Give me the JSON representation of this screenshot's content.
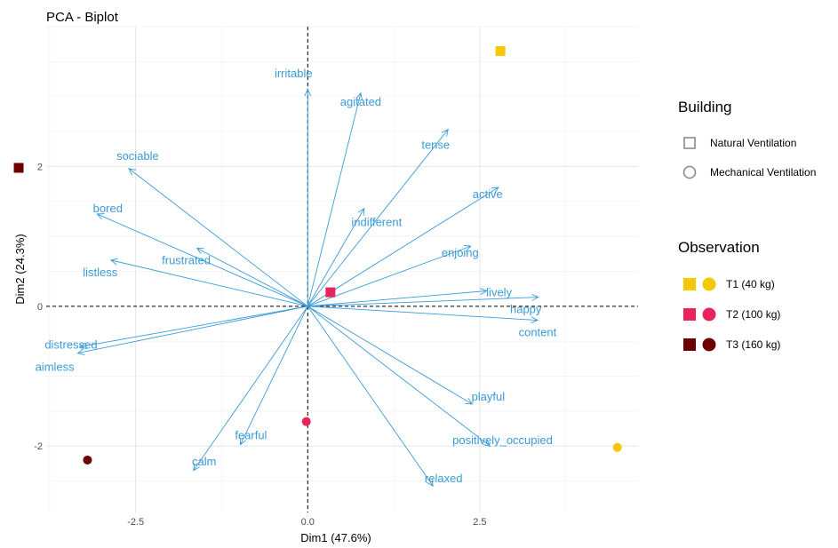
{
  "chart_data": {
    "type": "scatter",
    "title": "PCA - Biplot",
    "xlabel": "Dim1 (47.6%)",
    "ylabel": "Dim2 (24.3%)",
    "xlim": [
      -3.8,
      4.8
    ],
    "ylim": [
      -2.95,
      4.0
    ],
    "x_ticks": [
      -2.5,
      0.0,
      2.5
    ],
    "y_ticks": [
      -2,
      0,
      2
    ],
    "x_tick_labels": [
      "-2.5",
      "0.0",
      "2.5"
    ],
    "y_tick_labels": [
      "-2",
      "0",
      "2"
    ],
    "grid": true,
    "reference_lines": "dashed at x=0 and y=0",
    "vector_color": "#3a9bd6",
    "variables": [
      {
        "name": "irritable",
        "x": 0.0,
        "y": 3.1
      },
      {
        "name": "agitated",
        "x": 0.77,
        "y": 3.05
      },
      {
        "name": "tense",
        "x": 2.04,
        "y": 2.53
      },
      {
        "name": "indifferent",
        "x": 0.82,
        "y": 1.4
      },
      {
        "name": "active",
        "x": 2.77,
        "y": 1.7
      },
      {
        "name": "enjoing",
        "x": 2.37,
        "y": 0.86
      },
      {
        "name": "lively",
        "x": 2.6,
        "y": 0.22
      },
      {
        "name": "happy",
        "x": 3.35,
        "y": 0.13
      },
      {
        "name": "content",
        "x": 3.34,
        "y": -0.2
      },
      {
        "name": "playful",
        "x": 2.39,
        "y": -1.4
      },
      {
        "name": "positively_occupied",
        "x": 2.65,
        "y": -2.0
      },
      {
        "name": "relaxed",
        "x": 1.82,
        "y": -2.57
      },
      {
        "name": "fearful",
        "x": -0.98,
        "y": -1.98
      },
      {
        "name": "calm",
        "x": -1.66,
        "y": -2.35
      },
      {
        "name": "aimless",
        "x": -3.34,
        "y": -0.67
      },
      {
        "name": "distressed",
        "x": -3.31,
        "y": -0.58
      },
      {
        "name": "listless",
        "x": -2.86,
        "y": 0.66
      },
      {
        "name": "frustrated",
        "x": -1.61,
        "y": 0.83
      },
      {
        "name": "bored",
        "x": -3.06,
        "y": 1.32
      },
      {
        "name": "sociable",
        "x": -2.6,
        "y": 1.97
      }
    ],
    "points": [
      {
        "shape": "square",
        "group": "T1 (40 kg)",
        "x": 2.8,
        "y": 3.65
      },
      {
        "shape": "circle",
        "group": "T1 (40 kg)",
        "x": 4.5,
        "y": -2.02
      },
      {
        "shape": "square",
        "group": "T2 (100 kg)",
        "x": 0.33,
        "y": 0.2
      },
      {
        "shape": "circle",
        "group": "T2 (100 kg)",
        "x": -0.02,
        "y": -1.65
      },
      {
        "shape": "square",
        "group": "T3 (160 kg)",
        "x": -4.2,
        "y": 1.98
      },
      {
        "shape": "circle",
        "group": "T3 (160 kg)",
        "x": -3.2,
        "y": -2.2
      }
    ],
    "legend_placement": "right",
    "legend_building": {
      "title": "Building",
      "items": [
        {
          "label": "Natural Ventilation",
          "shape": "square"
        },
        {
          "label": "Mechanical Ventilation",
          "shape": "circle"
        }
      ]
    },
    "legend_observation": {
      "title": "Observation",
      "items": [
        {
          "label": "T1 (40 kg)",
          "color": "#f5c800"
        },
        {
          "label": "T2 (100 kg)",
          "color": "#e8245c"
        },
        {
          "label": "T3 (160 kg)",
          "color": "#6e0000"
        }
      ]
    }
  }
}
